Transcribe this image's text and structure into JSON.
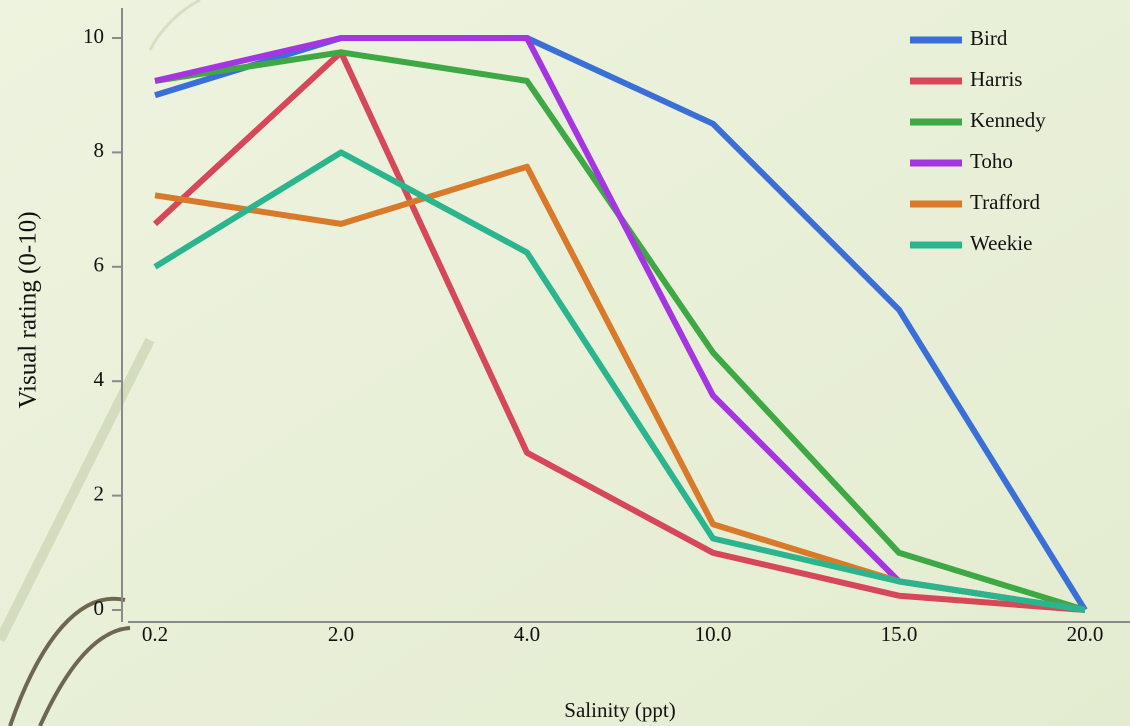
{
  "chart_data": {
    "type": "line",
    "x_label": "Salinity (ppt)",
    "y_label": "Visual rating (0-10)",
    "categories": [
      "0.2",
      "2.0",
      "4.0",
      "10.0",
      "15.0",
      "20.0"
    ],
    "series": [
      {
        "name": "Bird",
        "color": "#3b6fd8",
        "values": [
          9.0,
          10.0,
          10.0,
          8.5,
          5.25,
          0.0
        ]
      },
      {
        "name": "Harris",
        "color": "#d6475a",
        "values": [
          6.75,
          9.75,
          2.75,
          1.0,
          0.25,
          0.0
        ]
      },
      {
        "name": "Kennedy",
        "color": "#3ea844",
        "values": [
          9.25,
          9.75,
          9.25,
          4.5,
          1.0,
          0.0
        ]
      },
      {
        "name": "Toho",
        "color": "#a435e0",
        "values": [
          9.25,
          10.0,
          10.0,
          3.75,
          0.5,
          0.0
        ]
      },
      {
        "name": "Trafford",
        "color": "#d87a2a",
        "values": [
          7.25,
          6.75,
          7.75,
          1.5,
          0.5,
          0.0
        ]
      },
      {
        "name": "Weekie",
        "color": "#2bb58e",
        "values": [
          6.0,
          8.0,
          6.25,
          1.25,
          0.5,
          0.0
        ]
      }
    ],
    "ylim": [
      0,
      10.5
    ],
    "yticks": [
      0,
      2,
      4,
      6,
      8,
      10
    ],
    "legend": "top-right"
  }
}
